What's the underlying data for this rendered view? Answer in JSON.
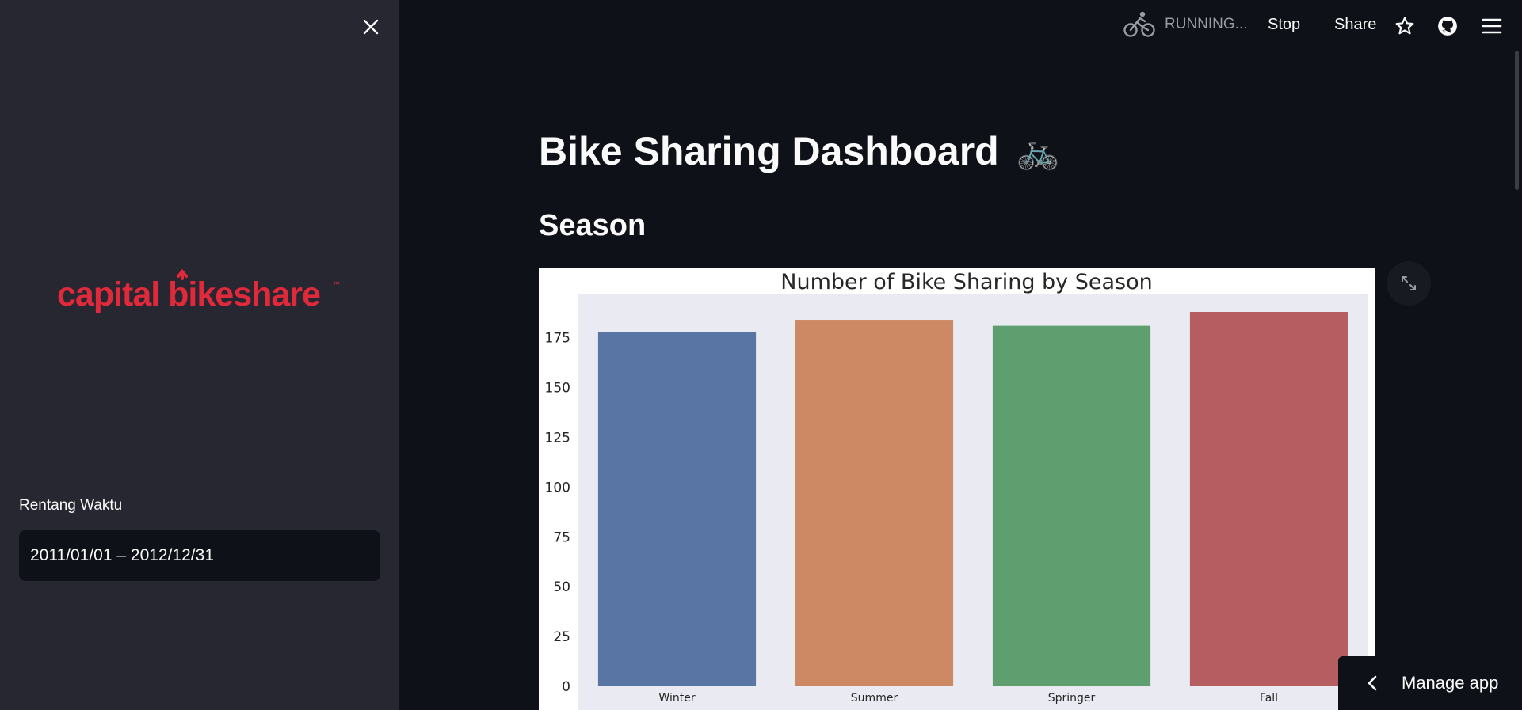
{
  "sidebar": {
    "logo_text": "capital bikeshare",
    "date_label": "Rentang Waktu",
    "date_value": "2011/01/01 – 2012/12/31"
  },
  "topbar": {
    "status": "RUNNING...",
    "stop_label": "Stop",
    "share_label": "Share",
    "icons": [
      "running-bike-icon",
      "star-icon",
      "github-icon",
      "hamburger-menu-icon"
    ]
  },
  "main": {
    "title": "Bike Sharing Dashboard",
    "title_emoji": "🚲",
    "section_title": "Season",
    "expand_icon": "fullscreen-icon"
  },
  "manage_app": {
    "label": "Manage app",
    "icon": "chevron-left-icon"
  },
  "colors": {
    "app_bg": "#0e1117",
    "sidebar_bg": "#262730",
    "logo_red": "#e0293a",
    "plot_bg": "#eaeaf2"
  },
  "chart_data": {
    "type": "bar",
    "title": "Number of Bike Sharing by Season",
    "xlabel": "",
    "ylabel": "",
    "categories": [
      "Winter",
      "Summer",
      "Springer",
      "Fall"
    ],
    "values": [
      178,
      184,
      181,
      188
    ],
    "colors": [
      "#5975a4",
      "#cc8963",
      "#5f9e6e",
      "#b55d60"
    ],
    "yticks": [
      0,
      25,
      50,
      75,
      100,
      125,
      150,
      175
    ],
    "ylim": [
      0,
      197
    ],
    "grid": false,
    "legend": "none"
  }
}
